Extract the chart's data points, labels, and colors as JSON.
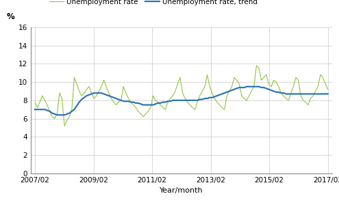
{
  "ylabel": "%",
  "xlabel": "Year/month",
  "ylim": [
    0,
    16
  ],
  "yticks": [
    0,
    2,
    4,
    6,
    8,
    10,
    12,
    14,
    16
  ],
  "line1_color": "#8dc63f",
  "line2_color": "#2e75b6",
  "line1_label": "Unemployment rate",
  "line2_label": "Unemployment rate, trend",
  "xtick_labels": [
    "2007/02",
    "2009/02",
    "2011/02",
    "2013/02",
    "2015/02",
    "2017/02"
  ],
  "unemployment_rate": [
    7.8,
    7.2,
    7.8,
    8.5,
    8.0,
    7.5,
    6.8,
    6.2,
    6.0,
    6.5,
    8.8,
    8.2,
    5.2,
    5.8,
    6.2,
    7.0,
    10.5,
    9.8,
    9.0,
    8.5,
    8.8,
    9.2,
    9.5,
    8.8,
    8.2,
    8.5,
    9.0,
    9.5,
    10.2,
    9.5,
    8.8,
    8.2,
    7.8,
    7.5,
    7.8,
    8.0,
    9.5,
    8.8,
    8.2,
    7.8,
    7.5,
    7.2,
    6.8,
    6.5,
    6.2,
    6.5,
    6.8,
    7.2,
    8.5,
    8.0,
    7.8,
    7.5,
    7.2,
    7.0,
    7.8,
    8.2,
    8.5,
    9.0,
    9.8,
    10.5,
    8.8,
    8.2,
    7.8,
    7.5,
    7.2,
    7.0,
    7.8,
    8.5,
    9.0,
    9.5,
    10.8,
    9.5,
    8.8,
    8.2,
    7.8,
    7.5,
    7.2,
    7.0,
    8.5,
    9.0,
    9.5,
    10.5,
    10.2,
    9.8,
    8.5,
    8.2,
    8.0,
    8.5,
    9.0,
    9.5,
    11.8,
    11.5,
    10.2,
    10.5,
    10.8,
    9.8,
    9.5,
    10.2,
    10.0,
    9.5,
    8.8,
    8.5,
    8.2,
    8.0,
    8.8,
    9.5,
    10.5,
    10.2,
    8.5,
    8.0,
    7.8,
    7.5,
    8.2,
    8.5,
    9.0,
    9.5,
    10.8,
    10.5,
    9.8,
    9.2
  ],
  "unemployment_trend": [
    7.0,
    7.0,
    7.0,
    7.0,
    7.0,
    6.9,
    6.8,
    6.6,
    6.5,
    6.4,
    6.4,
    6.4,
    6.4,
    6.5,
    6.6,
    6.8,
    7.0,
    7.4,
    7.8,
    8.1,
    8.3,
    8.5,
    8.6,
    8.7,
    8.8,
    8.8,
    8.8,
    8.8,
    8.7,
    8.6,
    8.5,
    8.4,
    8.3,
    8.2,
    8.1,
    8.0,
    7.9,
    7.9,
    7.9,
    7.8,
    7.8,
    7.7,
    7.7,
    7.6,
    7.5,
    7.5,
    7.5,
    7.5,
    7.5,
    7.6,
    7.7,
    7.7,
    7.8,
    7.8,
    7.9,
    7.9,
    8.0,
    8.0,
    8.0,
    8.0,
    8.0,
    8.0,
    8.0,
    8.0,
    8.0,
    8.0,
    8.0,
    8.1,
    8.1,
    8.2,
    8.2,
    8.3,
    8.3,
    8.4,
    8.5,
    8.6,
    8.7,
    8.8,
    8.9,
    9.0,
    9.1,
    9.2,
    9.3,
    9.4,
    9.4,
    9.4,
    9.5,
    9.5,
    9.5,
    9.5,
    9.5,
    9.5,
    9.4,
    9.4,
    9.3,
    9.2,
    9.1,
    9.0,
    8.9,
    8.9,
    8.8,
    8.8,
    8.7,
    8.7,
    8.7,
    8.7,
    8.7,
    8.7,
    8.7,
    8.7,
    8.7,
    8.7,
    8.7,
    8.7,
    8.7,
    8.7,
    8.7,
    8.7,
    8.7,
    8.7
  ]
}
